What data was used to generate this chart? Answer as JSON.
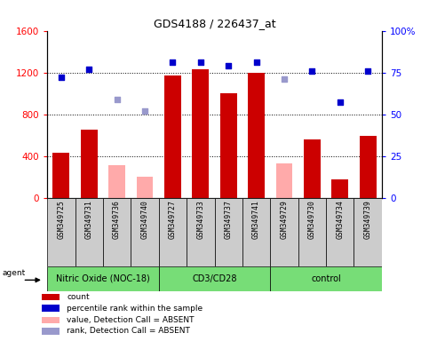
{
  "title": "GDS4188 / 226437_at",
  "samples": [
    "GSM349725",
    "GSM349731",
    "GSM349736",
    "GSM349740",
    "GSM349727",
    "GSM349733",
    "GSM349737",
    "GSM349741",
    "GSM349729",
    "GSM349730",
    "GSM349734",
    "GSM349739"
  ],
  "groups": [
    {
      "label": "Nitric Oxide (NOC-18)",
      "start": 0,
      "end": 3
    },
    {
      "label": "CD3/CD28",
      "start": 4,
      "end": 7
    },
    {
      "label": "control",
      "start": 8,
      "end": 11
    }
  ],
  "bar_values": [
    430,
    650,
    310,
    200,
    1175,
    1230,
    1000,
    1195,
    330,
    560,
    175,
    590
  ],
  "bar_colors": [
    "#cc0000",
    "#cc0000",
    "#ffaaaa",
    "#ffaaaa",
    "#cc0000",
    "#cc0000",
    "#cc0000",
    "#cc0000",
    "#ffaaaa",
    "#cc0000",
    "#cc0000",
    "#cc0000"
  ],
  "scatter_values": [
    72,
    77,
    59,
    52,
    81,
    81,
    79,
    81,
    71,
    76,
    57,
    76
  ],
  "scatter_colors": [
    "#0000cc",
    "#0000cc",
    "#9999cc",
    "#9999cc",
    "#0000cc",
    "#0000cc",
    "#0000cc",
    "#0000cc",
    "#9999cc",
    "#0000cc",
    "#0000cc",
    "#0000cc"
  ],
  "ylim_left": [
    0,
    1600
  ],
  "ylim_right": [
    0,
    100
  ],
  "yticks_left": [
    0,
    400,
    800,
    1200,
    1600
  ],
  "yticks_right": [
    0,
    25,
    50,
    75,
    100
  ],
  "grid_values": [
    400,
    800,
    1200
  ],
  "group_bg_color": "#77dd77",
  "tick_bg_color": "#cccccc",
  "legend_labels": [
    "count",
    "percentile rank within the sample",
    "value, Detection Call = ABSENT",
    "rank, Detection Call = ABSENT"
  ],
  "legend_colors": [
    "#cc0000",
    "#0000cc",
    "#ffaaaa",
    "#9999cc"
  ]
}
